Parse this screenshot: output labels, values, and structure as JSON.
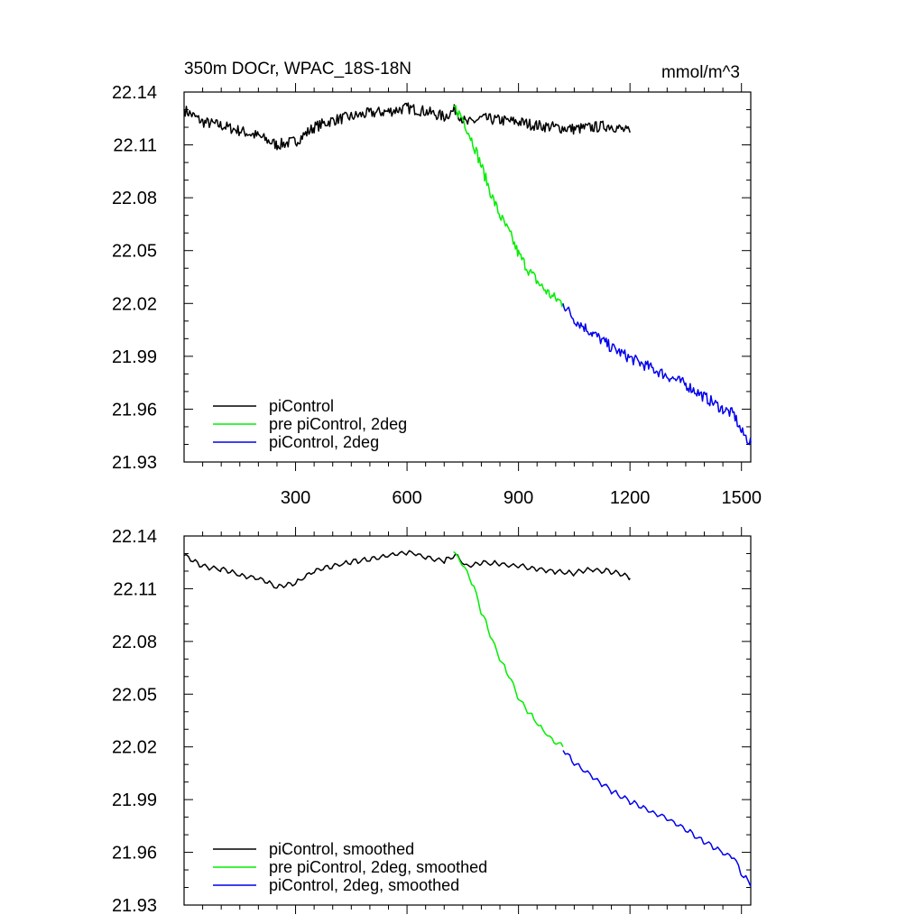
{
  "header": {
    "title": "350m DOCr, WPAC_18S-18N",
    "units": "mmol/m^3"
  },
  "chart_data": [
    {
      "type": "line",
      "title": "350m DOCr, WPAC_18S-18N",
      "units": "mmol/m^3",
      "xlim": [
        0,
        1525
      ],
      "ylim": [
        21.93,
        22.14
      ],
      "xticks": [
        300,
        600,
        900,
        1200,
        1500
      ],
      "yticks": [
        22.14,
        22.11,
        22.08,
        22.05,
        22.02,
        21.99,
        21.96,
        21.93
      ],
      "x_tick_labels_shown": true,
      "legend_position": "bottom-left",
      "grid": false,
      "smoothed": false,
      "series": [
        {
          "name": "piControl",
          "color": "#000000",
          "x": [
            0,
            50,
            100,
            150,
            200,
            250,
            300,
            350,
            400,
            450,
            500,
            550,
            600,
            650,
            700,
            730,
            760,
            800,
            850,
            900,
            950,
            1000,
            1050,
            1100,
            1150,
            1200
          ],
          "y": [
            22.13,
            22.123,
            22.121,
            22.118,
            22.115,
            22.11,
            22.112,
            22.12,
            22.124,
            22.126,
            22.128,
            22.129,
            22.131,
            22.129,
            22.126,
            22.13,
            22.122,
            22.125,
            22.124,
            22.123,
            22.121,
            22.12,
            22.119,
            22.12,
            22.121,
            22.117
          ]
        },
        {
          "name": "pre piControl, 2deg",
          "color": "#00ee00",
          "x": [
            725,
            750,
            780,
            800,
            830,
            850,
            880,
            900,
            930,
            960,
            990,
            1020
          ],
          "y": [
            22.132,
            22.125,
            22.11,
            22.098,
            22.08,
            22.07,
            22.058,
            22.048,
            22.038,
            22.03,
            22.024,
            22.02
          ]
        },
        {
          "name": "piControl, 2deg",
          "color": "#0000ee",
          "x": [
            1020,
            1050,
            1100,
            1150,
            1200,
            1250,
            1300,
            1350,
            1400,
            1450,
            1480,
            1500,
            1525
          ],
          "y": [
            22.02,
            22.011,
            22.003,
            21.995,
            21.989,
            21.984,
            21.979,
            21.974,
            21.967,
            21.96,
            21.957,
            21.947,
            21.941
          ]
        }
      ]
    },
    {
      "type": "line",
      "xlim": [
        0,
        1525
      ],
      "ylim": [
        21.93,
        22.14
      ],
      "xticks": [
        300,
        600,
        900,
        1200,
        1500
      ],
      "yticks": [
        22.14,
        22.11,
        22.08,
        22.05,
        22.02,
        21.99,
        21.96,
        21.93
      ],
      "x_tick_labels_shown": false,
      "legend_position": "bottom-left",
      "grid": false,
      "smoothed": true,
      "series": [
        {
          "name": "piControl, smoothed",
          "color": "#000000",
          "x": [
            0,
            50,
            100,
            150,
            200,
            250,
            300,
            350,
            400,
            450,
            500,
            550,
            600,
            650,
            700,
            730,
            760,
            800,
            850,
            900,
            950,
            1000,
            1050,
            1100,
            1150,
            1200
          ],
          "y": [
            22.129,
            22.123,
            22.121,
            22.118,
            22.116,
            22.111,
            22.113,
            22.12,
            22.123,
            22.125,
            22.127,
            22.129,
            22.131,
            22.128,
            22.126,
            22.129,
            22.123,
            22.125,
            22.124,
            22.123,
            22.121,
            22.12,
            22.119,
            22.121,
            22.12,
            22.116
          ]
        },
        {
          "name": "pre piControl, 2deg, smoothed",
          "color": "#00ee00",
          "x": [
            725,
            750,
            780,
            800,
            830,
            850,
            880,
            900,
            930,
            960,
            990,
            1020
          ],
          "y": [
            22.131,
            22.124,
            22.111,
            22.097,
            22.081,
            22.07,
            22.058,
            22.048,
            22.039,
            22.031,
            22.024,
            22.02
          ]
        },
        {
          "name": "piControl, 2deg, smoothed",
          "color": "#0000ee",
          "x": [
            1020,
            1050,
            1100,
            1150,
            1200,
            1250,
            1300,
            1350,
            1400,
            1450,
            1480,
            1500,
            1525
          ],
          "y": [
            22.018,
            22.011,
            22.003,
            21.995,
            21.989,
            21.984,
            21.979,
            21.973,
            21.966,
            21.96,
            21.957,
            21.948,
            21.942
          ]
        }
      ]
    }
  ]
}
